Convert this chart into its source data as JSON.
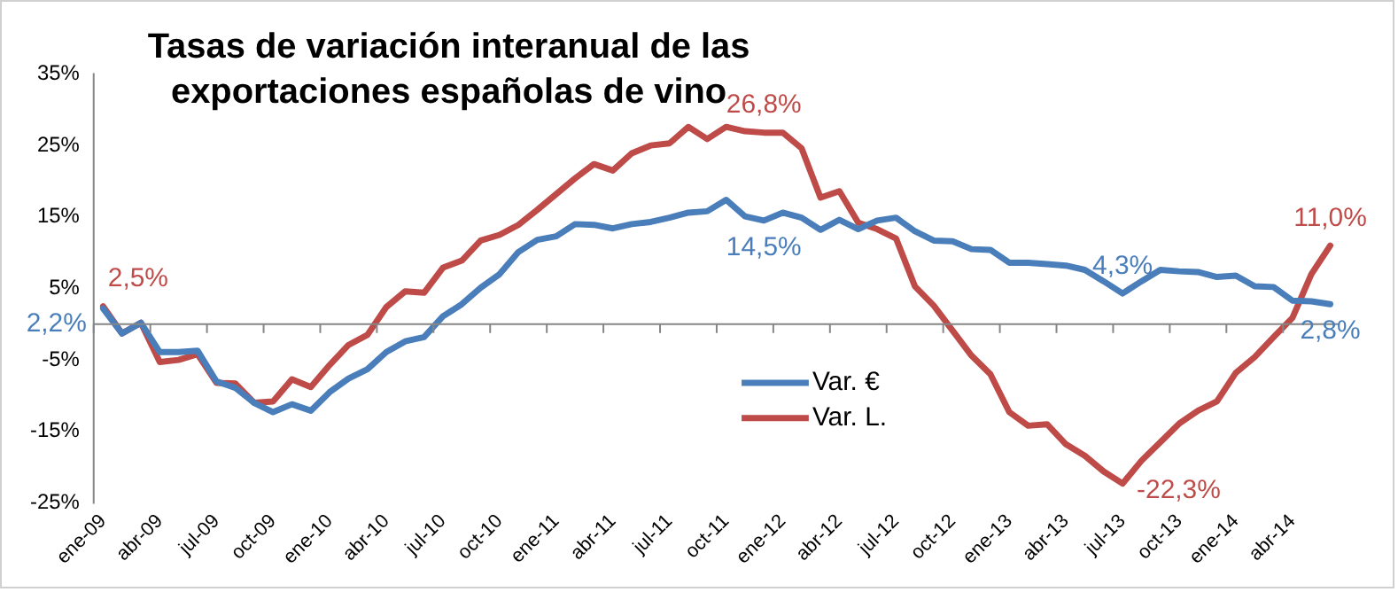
{
  "chart_data": {
    "type": "line",
    "title": "Tasas de variación interanual de las exportaciones españolas de vino",
    "categories": [
      "ene-09",
      null,
      null,
      "abr-09",
      null,
      null,
      "jul-09",
      null,
      null,
      "oct-09",
      null,
      null,
      "ene-10",
      null,
      null,
      "abr-10",
      null,
      null,
      "jul-10",
      null,
      null,
      "oct-10",
      null,
      null,
      "ene-11",
      null,
      null,
      "abr-11",
      null,
      null,
      "jul-11",
      null,
      null,
      "oct-11",
      null,
      null,
      "ene-12",
      null,
      null,
      "abr-12",
      null,
      null,
      "jul-12",
      null,
      null,
      "oct-12",
      null,
      null,
      "ene-13",
      null,
      null,
      "abr-13",
      null,
      null,
      "jul-13",
      null,
      null,
      "oct-13",
      null,
      null,
      "ene-14",
      null,
      null,
      "abr-14",
      null,
      null
    ],
    "series": [
      {
        "name": "Var. €",
        "color": "#4a7ebb",
        "values": [
          2.2,
          -1.3,
          0.2,
          -3.9,
          -3.9,
          -3.7,
          -8,
          -8.9,
          -11,
          -12.3,
          -11.2,
          -12.1,
          -9.5,
          -7.6,
          -6.3,
          -3.9,
          -2.4,
          -1.8,
          1.1,
          2.8,
          5.1,
          7,
          10.1,
          11.8,
          12.3,
          14,
          13.9,
          13.4,
          14,
          14.3,
          14.9,
          15.6,
          15.8,
          17.4,
          15.1,
          14.5,
          15.6,
          14.9,
          13.2,
          14.6,
          13.3,
          14.5,
          14.9,
          13,
          11.7,
          11.6,
          10.5,
          10.4,
          8.6,
          8.6,
          8.4,
          8.2,
          7.6,
          6,
          4.3,
          6,
          7.6,
          7.4,
          7.3,
          6.6,
          6.8,
          5.3,
          5.2,
          3.3,
          3.2,
          2.8
        ],
        "value_labels": [
          "2,2%",
          null,
          null,
          null,
          null,
          null,
          null,
          null,
          null,
          null,
          null,
          null,
          null,
          null,
          null,
          null,
          null,
          null,
          null,
          null,
          null,
          null,
          null,
          null,
          null,
          null,
          null,
          null,
          null,
          null,
          null,
          null,
          null,
          null,
          null,
          "14,5%",
          null,
          null,
          null,
          null,
          null,
          null,
          null,
          null,
          null,
          null,
          null,
          null,
          null,
          null,
          null,
          null,
          null,
          null,
          "4,3%",
          null,
          null,
          null,
          null,
          null,
          null,
          null,
          null,
          null,
          null,
          "2,8%"
        ]
      },
      {
        "name": "Var. L.",
        "color": "#be4b48",
        "values": [
          2.5,
          -1.3,
          0.2,
          -5.3,
          -5,
          -4.2,
          -8.2,
          -8.3,
          -11,
          -10.8,
          -7.7,
          -8.8,
          -5.7,
          -2.9,
          -1.5,
          2.4,
          4.6,
          4.4,
          7.9,
          8.9,
          11.7,
          12.5,
          13.9,
          16,
          18.2,
          20.4,
          22.4,
          21.5,
          23.9,
          25,
          25.3,
          27.6,
          25.9,
          27.6,
          27,
          26.8,
          26.8,
          24.6,
          17.7,
          18.6,
          14.2,
          13.3,
          12,
          5.3,
          2.6,
          -0.9,
          -4.4,
          -7,
          -12.3,
          -14.2,
          -14,
          -16.8,
          -18.4,
          -20.6,
          -22.3,
          -19.1,
          -16.5,
          -13.9,
          -12.1,
          -10.8,
          -6.8,
          -4.6,
          -1.8,
          0.9,
          7,
          11.0
        ],
        "value_labels": [
          "2,5%",
          null,
          null,
          null,
          null,
          null,
          null,
          null,
          null,
          null,
          null,
          null,
          null,
          null,
          null,
          null,
          null,
          null,
          null,
          null,
          null,
          null,
          null,
          null,
          null,
          null,
          null,
          null,
          null,
          null,
          null,
          null,
          null,
          null,
          null,
          "26,8%",
          null,
          null,
          null,
          null,
          null,
          null,
          null,
          null,
          null,
          null,
          null,
          null,
          null,
          null,
          null,
          null,
          null,
          null,
          "-22,3%",
          null,
          null,
          null,
          null,
          null,
          null,
          null,
          null,
          null,
          null,
          "11,0%"
        ]
      }
    ],
    "ylim": [
      -25,
      35
    ],
    "yticks": [
      {
        "value": -25,
        "label": "-25%"
      },
      {
        "value": -15,
        "label": "-15%"
      },
      {
        "value": -5,
        "label": "-5%"
      },
      {
        "value": 5,
        "label": "5%"
      },
      {
        "value": 15,
        "label": "15%"
      },
      {
        "value": 25,
        "label": "25%"
      },
      {
        "value": 35,
        "label": "35%"
      }
    ],
    "grid": false,
    "legend": "bottom",
    "marker": "none",
    "line_style": "solid"
  }
}
